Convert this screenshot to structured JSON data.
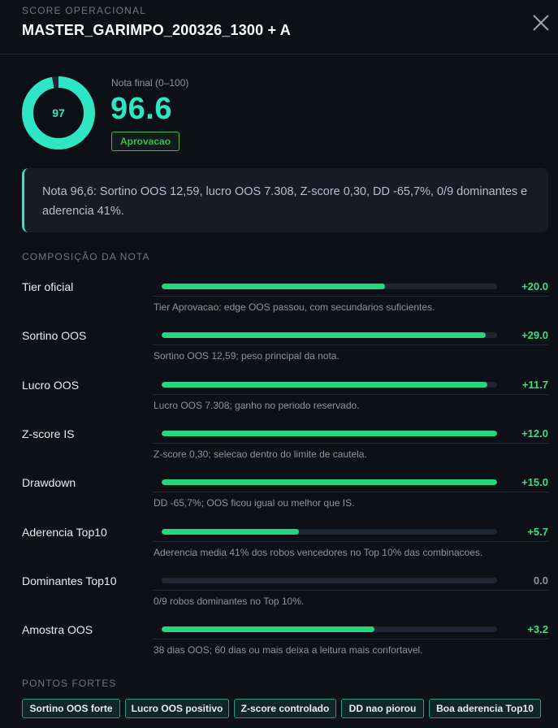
{
  "header": {
    "eyebrow": "SCORE OPERACIONAL",
    "title": "MASTER_GARIMPO_200326_1300 + A"
  },
  "score": {
    "ring_value": "97",
    "ring_fraction": 0.97,
    "label": "Nota final (0–100)",
    "value": "96.6",
    "badge": "Aprovacao"
  },
  "summary": {
    "text": "Nota 96,6: Sortino OOS 12,59, lucro OOS 7.308, Z-score 0,30, DD -65,7%, 0/9 dominantes e aderencia 41%."
  },
  "composition": {
    "title": "COMPOSIÇÃO DA NOTA",
    "rows": [
      {
        "label": "Tier oficial",
        "value": "+20.0",
        "fill": 0.665,
        "desc": "Tier Aprovacao: edge OOS passou, com secundarios suficientes."
      },
      {
        "label": "Sortino OOS",
        "value": "+29.0",
        "fill": 0.965,
        "desc": "Sortino OOS 12,59; peso principal da nota."
      },
      {
        "label": "Lucro OOS",
        "value": "+11.7",
        "fill": 0.97,
        "desc": "Lucro OOS 7.308; ganho no periodo reservado."
      },
      {
        "label": "Z-score IS",
        "value": "+12.0",
        "fill": 1.0,
        "desc": "Z-score 0,30; selecao dentro do limite de cautela."
      },
      {
        "label": "Drawdown",
        "value": "+15.0",
        "fill": 1.0,
        "desc": "DD -65,7%; OOS ficou igual ou melhor que IS."
      },
      {
        "label": "Aderencia Top10",
        "value": "+5.7",
        "fill": 0.41,
        "desc": "Aderencia media 41% dos robos vencedores no Top 10% das combinacoes."
      },
      {
        "label": "Dominantes Top10",
        "value": "0.0",
        "fill": 0.0,
        "desc": "0/9 robos dominantes no Top 10%."
      },
      {
        "label": "Amostra OOS",
        "value": "+3.2",
        "fill": 0.635,
        "desc": "38 dias OOS; 60 dias ou mais deixa a leitura mais confortavel."
      }
    ]
  },
  "strengths": {
    "title": "PONTOS FORTES",
    "chips": [
      "Sortino OOS forte",
      "Lucro OOS positivo",
      "Z-score controlado",
      "DD nao piorou",
      "Boa aderencia Top10"
    ]
  },
  "colors": {
    "accent": "#2ee6c4",
    "bar": "#22d77e",
    "approve": "#3fb950",
    "background": "#0d1117"
  },
  "icons": {
    "close": "close-icon"
  }
}
